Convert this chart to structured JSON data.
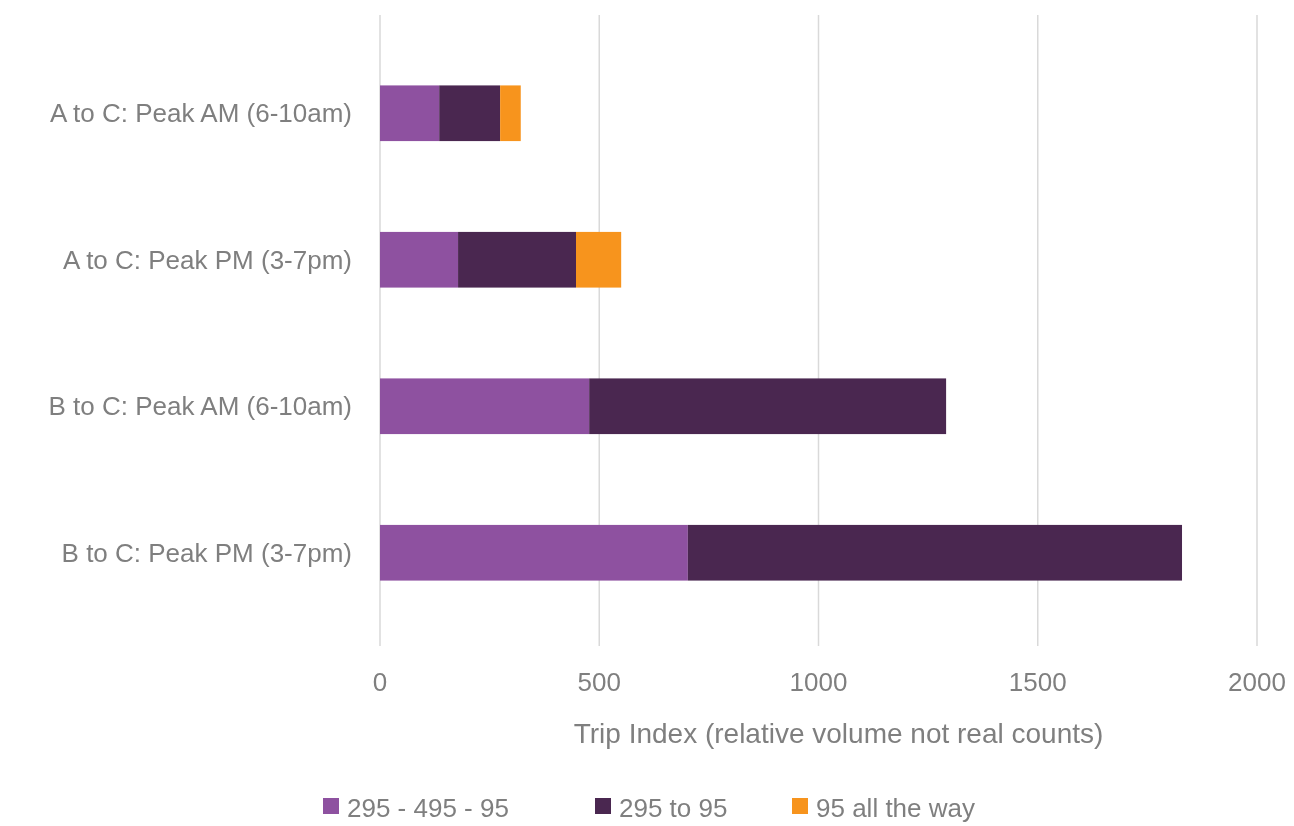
{
  "chart_data": {
    "type": "bar",
    "orientation": "horizontal",
    "stacked": true,
    "categories": [
      "A to C: Peak AM (6-10am)",
      "A to C: Peak PM (3-7pm)",
      "B to C: Peak AM (6-10am)",
      "B to C: Peak PM (3-7pm)"
    ],
    "series": [
      {
        "name": "295 - 495 - 95",
        "color": "#8e51a0",
        "values": [
          135,
          178,
          477,
          702
        ]
      },
      {
        "name": "295 to 95",
        "color": "#4a2750",
        "values": [
          139,
          269,
          814,
          1127
        ]
      },
      {
        "name": "95 all the way",
        "color": "#f7941d",
        "values": [
          47,
          103,
          null,
          null
        ]
      }
    ],
    "xlabel": "Trip Index (relative volume not real counts)",
    "xlim": [
      0,
      2000
    ],
    "xticks": [
      0,
      500,
      1000,
      1500,
      2000
    ],
    "grid": "x",
    "legend": "bottom"
  }
}
